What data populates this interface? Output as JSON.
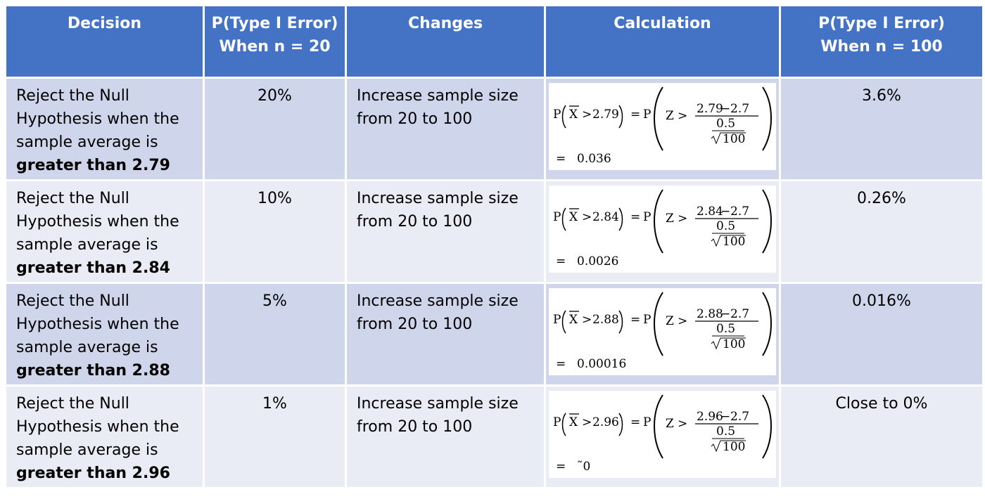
{
  "headers": [
    {
      "line1": "Decision",
      "line2": ""
    },
    {
      "line1": "P(Type I Error)",
      "line2": "When n = 20"
    },
    {
      "line1": "Changes",
      "line2": ""
    },
    {
      "line1": "Calculation",
      "line2": ""
    },
    {
      "line1": "P(Type I Error)",
      "line2": "When n = 100"
    }
  ],
  "rows": [
    {
      "decision": {
        "l1": "Reject the Null",
        "l2": "Hypothesis when the",
        "l3": "sample average is",
        "l4": "greater than 2.79"
      },
      "p20": "20%",
      "changes": {
        "l1": "Increase sample size",
        "l2": "from 20 to 100"
      },
      "calc": {
        "p": "P",
        "xbar": "X",
        "gt": ">",
        "threshold": "2.79",
        "eq": "=",
        "z": "Z",
        "num_a": "2.79",
        "minus": "−",
        "num_b": "2.7",
        "sd": "0.5",
        "n": "100",
        "result": "0.036"
      },
      "p100": "3.6%"
    },
    {
      "decision": {
        "l1": "Reject the Null",
        "l2": "Hypothesis when the",
        "l3": "sample average is",
        "l4": "greater than 2.84"
      },
      "p20": "10%",
      "changes": {
        "l1": "Increase sample size",
        "l2": "from 20 to 100"
      },
      "calc": {
        "p": "P",
        "xbar": "X",
        "gt": ">",
        "threshold": "2.84",
        "eq": "=",
        "z": "Z",
        "num_a": "2.84",
        "minus": "−",
        "num_b": "2.7",
        "sd": "0.5",
        "n": "100",
        "result": "0.0026"
      },
      "p100": "0.26%"
    },
    {
      "decision": {
        "l1": "Reject the Null",
        "l2": "Hypothesis when the",
        "l3": "sample average is",
        "l4": "greater than 2.88"
      },
      "p20": "5%",
      "changes": {
        "l1": "Increase sample size",
        "l2": "from 20 to 100"
      },
      "calc": {
        "p": "P",
        "xbar": "X",
        "gt": ">",
        "threshold": "2.88",
        "eq": "=",
        "z": "Z",
        "num_a": "2.88",
        "minus": "−",
        "num_b": "2.7",
        "sd": "0.5",
        "n": "100",
        "result": "0.00016"
      },
      "p100": "0.016%"
    },
    {
      "decision": {
        "l1": "Reject the Null",
        "l2": "Hypothesis when the",
        "l3": "sample average is",
        "l4": "greater than 2.96"
      },
      "p20": "1%",
      "changes": {
        "l1": "Increase sample size",
        "l2": "from 20 to 100"
      },
      "calc": {
        "p": "P",
        "xbar": "X",
        "gt": ">",
        "threshold": "2.96",
        "eq": "=",
        "z": "Z",
        "num_a": "2.96",
        "minus": "−",
        "num_b": "2.7",
        "sd": "0.5",
        "n": "100",
        "result": "˜0"
      },
      "p100": "Close to 0%"
    }
  ]
}
